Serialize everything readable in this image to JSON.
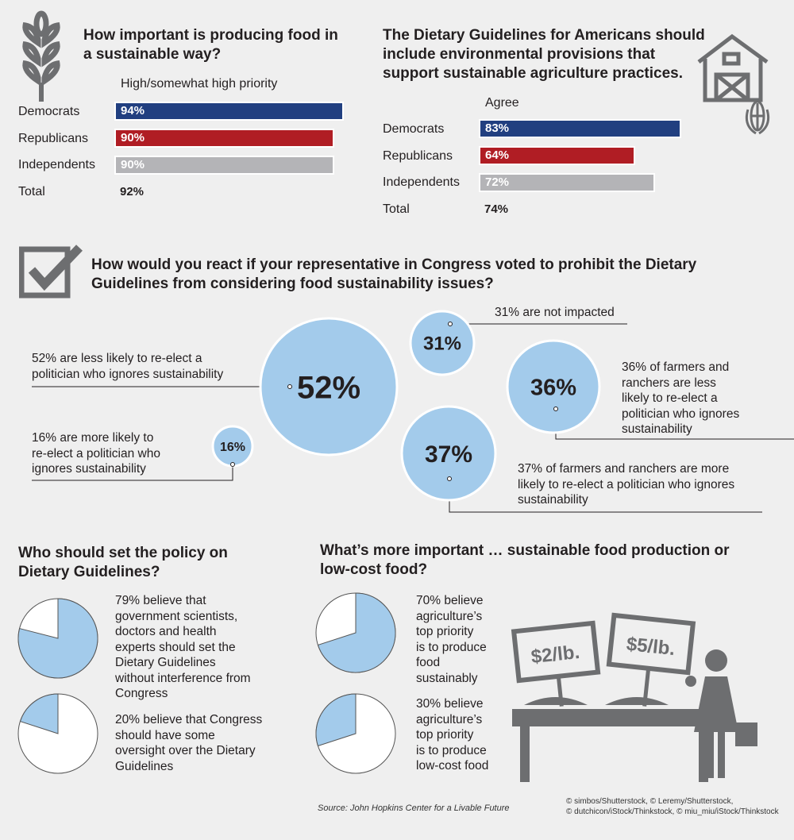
{
  "colors": {
    "democrats": "#213f80",
    "republicans": "#b01d24",
    "independents": "#b4b4b7",
    "bubble": "#a3cbeb",
    "icon": "#6d6e70",
    "background": "#efefef"
  },
  "section1": {
    "title_line1": "How important is producing food in",
    "title_line2": "a sustainable way?",
    "subtitle": "High/somewhat high priority",
    "icon": "wheat-icon"
  },
  "section2": {
    "title_line1": "The Dietary Guidelines for Americans should",
    "title_line2": "include environmental provisions that",
    "title_line3": "support sustainable agriculture practices.",
    "subtitle": "Agree",
    "icon": "barn-icon"
  },
  "section3": {
    "title_line1": "How would you react if your representative in Congress voted to prohibit the Dietary",
    "title_line2": "Guidelines from considering food sustainability issues?",
    "icon": "checkbox-icon",
    "captions": {
      "c52": [
        "52% are less likely to re-elect a",
        "politician who ignores sustainability"
      ],
      "c31": [
        "31% are not impacted"
      ],
      "c36": [
        "36% of farmers and",
        "ranchers are less",
        "likely to re-elect a",
        "politician who ignores",
        "sustainability"
      ],
      "c37": [
        "37% of farmers and ranchers are more",
        "likely to re-elect a politician who ignores",
        "sustainability"
      ],
      "c16": [
        "16% are more likely to",
        "re-elect a politician who",
        "ignores sustainability"
      ]
    }
  },
  "section4": {
    "title_line1": "Who should set the policy on",
    "title_line2": "Dietary Guidelines?",
    "text1": [
      "79% believe that",
      "government scientists,",
      "doctors and health",
      "experts should set the",
      "Dietary Guidelines",
      "without interference from",
      "Congress"
    ],
    "text2": [
      "20% believe that Congress",
      "should have some",
      "oversight over the Dietary",
      "Guidelines"
    ]
  },
  "section5": {
    "title_line1": "What’s more important … sustainable food production or",
    "title_line2": "low-cost food?",
    "text1": [
      "70% believe",
      "agriculture’s",
      "top priority",
      "is to produce",
      "food",
      "sustainably"
    ],
    "text2": [
      "30% believe",
      "agriculture’s",
      "top priority",
      "is to produce",
      "low-cost food"
    ],
    "sign1": "$2/lb.",
    "sign2": "$5/lb.",
    "icon": "market-shopper-icon"
  },
  "source": "Source: John Hopkins Center for a Livable Future",
  "credits": [
    "© simbos/Shutterstock, © Leremy/Shutterstock,",
    "© dutchicon/iStock/Thinkstock, © miu_miu/iStock/Thinkstock"
  ],
  "chart_data": [
    {
      "type": "bar",
      "title": "How important is producing food in a sustainable way?",
      "subtitle": "High/somewhat high priority",
      "categories": [
        "Democrats",
        "Republicans",
        "Independents"
      ],
      "values": [
        94,
        90,
        90
      ],
      "labels": [
        "94%",
        "90%",
        "90%"
      ],
      "total_label": "Total",
      "total": "92%",
      "xlim": [
        0,
        100
      ]
    },
    {
      "type": "bar",
      "title": "The Dietary Guidelines for Americans should include environmental provisions that support sustainable agriculture practices.",
      "subtitle": "Agree",
      "categories": [
        "Democrats",
        "Republicans",
        "Independents"
      ],
      "values": [
        83,
        64,
        72
      ],
      "labels": [
        "83%",
        "64%",
        "72%"
      ],
      "total_label": "Total",
      "total": "74%",
      "xlim": [
        0,
        100
      ]
    },
    {
      "type": "bubble",
      "title": "How would you react if your representative in Congress voted to prohibit the Dietary Guidelines from considering food sustainability issues?",
      "values": [
        52,
        31,
        36,
        37,
        16
      ],
      "labels": [
        "52%",
        "31%",
        "36%",
        "37%",
        "16%"
      ]
    },
    {
      "type": "pie",
      "title": "Who should set the policy on Dietary Guidelines?",
      "values": [
        79,
        20
      ]
    },
    {
      "type": "pie",
      "title": "What’s more important … sustainable food production or low-cost food?",
      "values": [
        70,
        30
      ]
    }
  ]
}
